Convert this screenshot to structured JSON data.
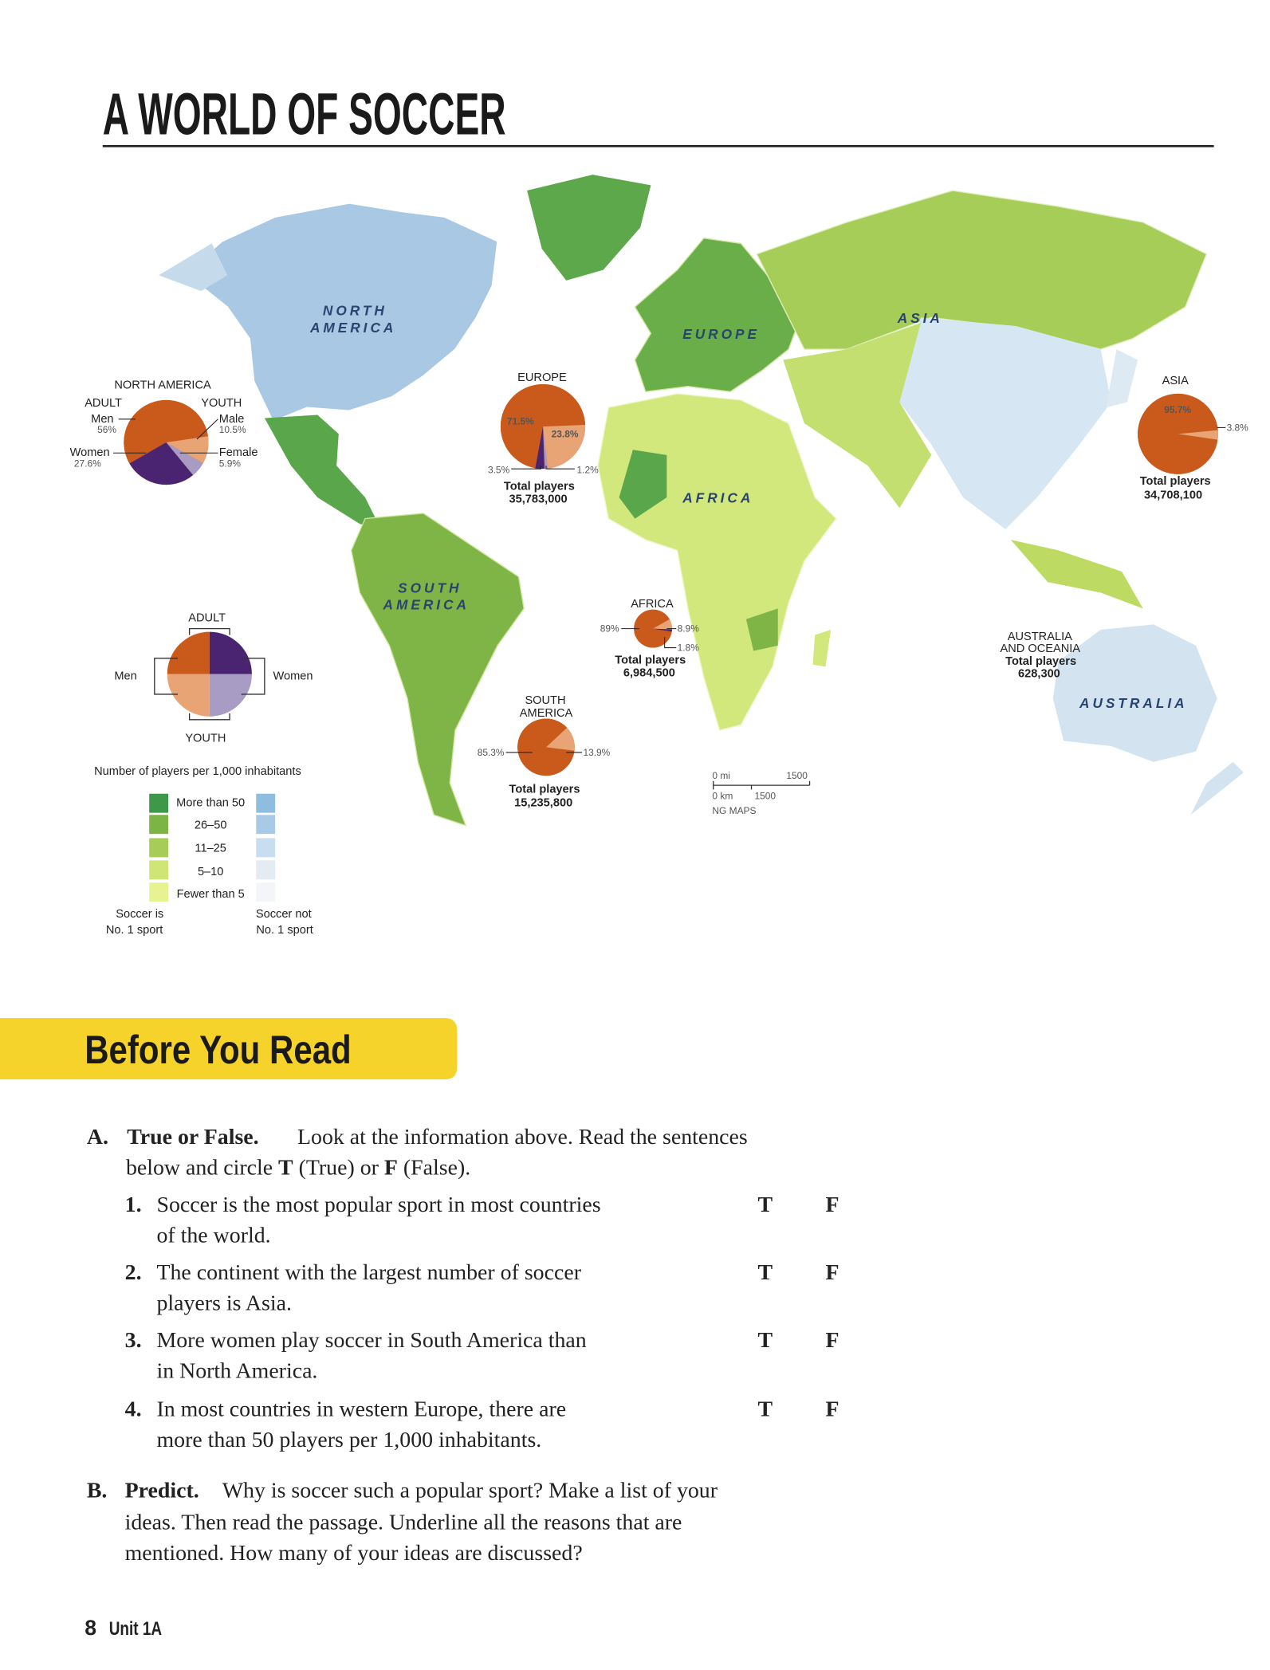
{
  "page": {
    "title": "A WORLD OF SOCCER",
    "footer_page": "8",
    "footer_unit": "Unit 1A"
  },
  "colors": {
    "men": "#c95a1c",
    "women": "#4a2470",
    "youth_male": "#e8a474",
    "youth_female": "#a99cc4",
    "banner": "#f6d32a",
    "green_scale": [
      "#3e984a",
      "#7db446",
      "#a7cc58",
      "#cfe576",
      "#e7f290"
    ],
    "blue_scale": [
      "#8fbde0",
      "#a8cae6",
      "#c8ddef",
      "#e4ebf3",
      "#f3f5f8"
    ]
  },
  "map": {
    "region_labels": {
      "north_america": [
        "NORTH",
        "AMERICA"
      ],
      "south_america": [
        "SOUTH",
        "AMERICA"
      ],
      "europe": "EUROPE",
      "asia": "ASIA",
      "africa": "AFRICA",
      "australia": "AUSTRALIA"
    },
    "pies": [
      {
        "title": "NORTH AMERICA",
        "adult_label": "ADULT",
        "youth_label": "YOUTH",
        "slices": [
          {
            "group": "men",
            "label": "Men",
            "value": 56,
            "value_label": "56%"
          },
          {
            "group": "youth_male",
            "label": "Male",
            "value": 10.5,
            "value_label": "10.5%"
          },
          {
            "group": "youth_female",
            "label": "Female",
            "value": 5.9,
            "value_label": "5.9%"
          },
          {
            "group": "women",
            "label": "Women",
            "value": 27.6,
            "value_label": "27.6%"
          }
        ]
      },
      {
        "title": "EUROPE",
        "total_label": "Total players",
        "total": "35,783,000",
        "slices": [
          {
            "group": "men",
            "value": 71.5,
            "value_label": "71.5%"
          },
          {
            "group": "youth_male",
            "value": 23.8,
            "value_label": "23.8%"
          },
          {
            "group": "youth_female",
            "value": 1.2,
            "value_label": "1.2%"
          },
          {
            "group": "women",
            "value": 3.5,
            "value_label": "3.5%"
          }
        ]
      },
      {
        "title": "ASIA",
        "total_label": "Total players",
        "total": "34,708,100",
        "slices": [
          {
            "group": "men",
            "value": 95.7,
            "value_label": "95.7%"
          },
          {
            "group": "youth_male",
            "value": 3.8,
            "value_label": "3.8%"
          }
        ]
      },
      {
        "title": "AFRICA",
        "total_label": "Total players",
        "total": "6,984,500",
        "slices": [
          {
            "group": "men",
            "value": 89,
            "value_label": "89%"
          },
          {
            "group": "youth_male",
            "value": 8.9,
            "value_label": "8.9%"
          },
          {
            "group": "women",
            "value": 1.8,
            "value_label": "1.8%"
          }
        ]
      },
      {
        "title": "SOUTH AMERICA",
        "title_lines": [
          "SOUTH",
          "AMERICA"
        ],
        "total_label": "Total players",
        "total": "15,235,800",
        "slices": [
          {
            "group": "men",
            "value": 85.3,
            "value_label": "85.3%"
          },
          {
            "group": "youth_male",
            "value": 13.9,
            "value_label": "13.9%"
          }
        ]
      },
      {
        "title_lines": [
          "AUSTRALIA",
          "AND OCEANIA"
        ],
        "total_label": "Total players",
        "total": "628,300",
        "slices": []
      }
    ],
    "key_pie": {
      "adult": "ADULT",
      "youth": "YOUTH",
      "men": "Men",
      "women": "Women"
    },
    "legend": {
      "title": "Number of players per 1,000 inhabitants",
      "levels": [
        "More than 50",
        "26–50",
        "11–25",
        "5–10",
        "Fewer than 5"
      ],
      "left_caption": [
        "Soccer is",
        "No. 1 sport"
      ],
      "right_caption": [
        "Soccer not",
        "No. 1 sport"
      ]
    },
    "scale_bar": {
      "mi_zero": "0 mi",
      "mi_value": "1500",
      "km_zero": "0 km",
      "km_value": "1500",
      "credit": "NG MAPS"
    }
  },
  "before_you_read": {
    "heading": "Before You Read",
    "section_a": {
      "letter": "A.",
      "title": "True or False.",
      "instruction_lines": [
        "Look at the information above. Read the sentences",
        "below and circle",
        "T",
        "(True) or",
        "F",
        "(False)."
      ],
      "true_label": "T",
      "false_label": "F",
      "items": [
        {
          "number": "1.",
          "lines": [
            "Soccer is the most popular sport in most countries",
            "of the world."
          ]
        },
        {
          "number": "2.",
          "lines": [
            "The continent with the largest number of soccer",
            "players is Asia."
          ]
        },
        {
          "number": "3.",
          "lines": [
            "More women play soccer in South America than",
            "in North America."
          ]
        },
        {
          "number": "4.",
          "lines": [
            "In most countries in western Europe, there are",
            "more than 50 players per 1,000 inhabitants."
          ]
        }
      ]
    },
    "section_b": {
      "letter": "B.",
      "title": "Predict.",
      "lines": [
        "Why is soccer such a popular sport? Make a list of your",
        "ideas. Then read the passage. Underline all the reasons that are",
        "mentioned. How many of your ideas are discussed?"
      ]
    }
  }
}
